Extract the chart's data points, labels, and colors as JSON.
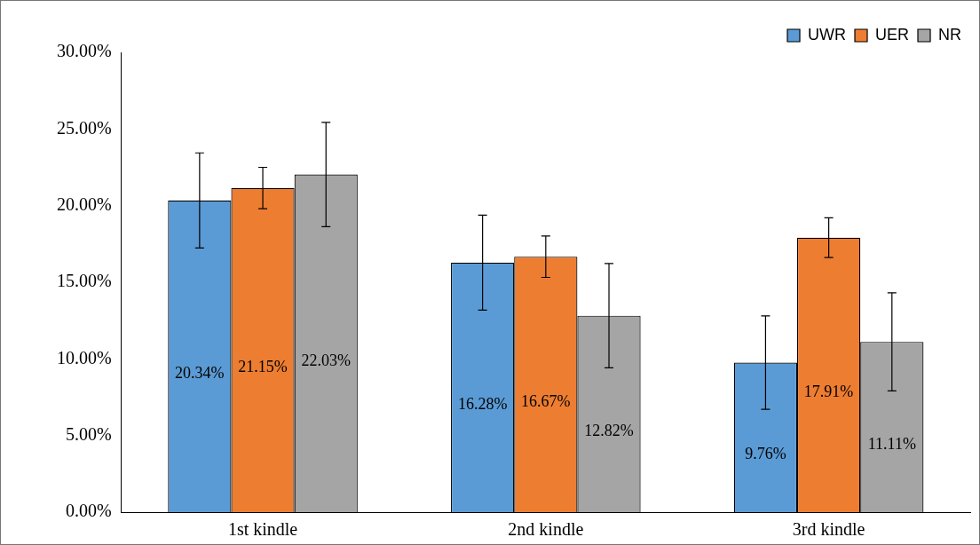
{
  "chart_data": {
    "type": "bar",
    "categories": [
      "1st kindle",
      "2nd kindle",
      "3rd kindle"
    ],
    "series": [
      {
        "name": "UWR",
        "color": "#5b9bd5",
        "values": [
          20.34,
          16.28,
          9.76
        ],
        "errors": [
          3.1,
          3.1,
          3.05
        ],
        "value_labels": [
          "20.34%",
          "16.28%",
          "9.76%"
        ]
      },
      {
        "name": "UER",
        "color": "#ed7d31",
        "values": [
          21.15,
          16.67,
          17.91
        ],
        "errors": [
          1.35,
          1.35,
          1.3
        ],
        "value_labels": [
          "21.15%",
          "16.67%",
          "17.91%"
        ]
      },
      {
        "name": "NR",
        "color": "#a5a5a5",
        "values": [
          22.03,
          12.82,
          11.11
        ],
        "errors": [
          3.4,
          3.4,
          3.2
        ],
        "value_labels": [
          "22.03%",
          "12.82%",
          "11.11%"
        ]
      }
    ],
    "ylim": [
      0,
      30
    ],
    "yticks": [
      {
        "value": 0,
        "label": "0.00%"
      },
      {
        "value": 5,
        "label": "5.00%"
      },
      {
        "value": 10,
        "label": "10.00%"
      },
      {
        "value": 15,
        "label": "15.00%"
      },
      {
        "value": 20,
        "label": "20.00%"
      },
      {
        "value": 25,
        "label": "25.00%"
      },
      {
        "value": 30,
        "label": "30.00%"
      }
    ],
    "grid": false,
    "legend": "top right"
  }
}
